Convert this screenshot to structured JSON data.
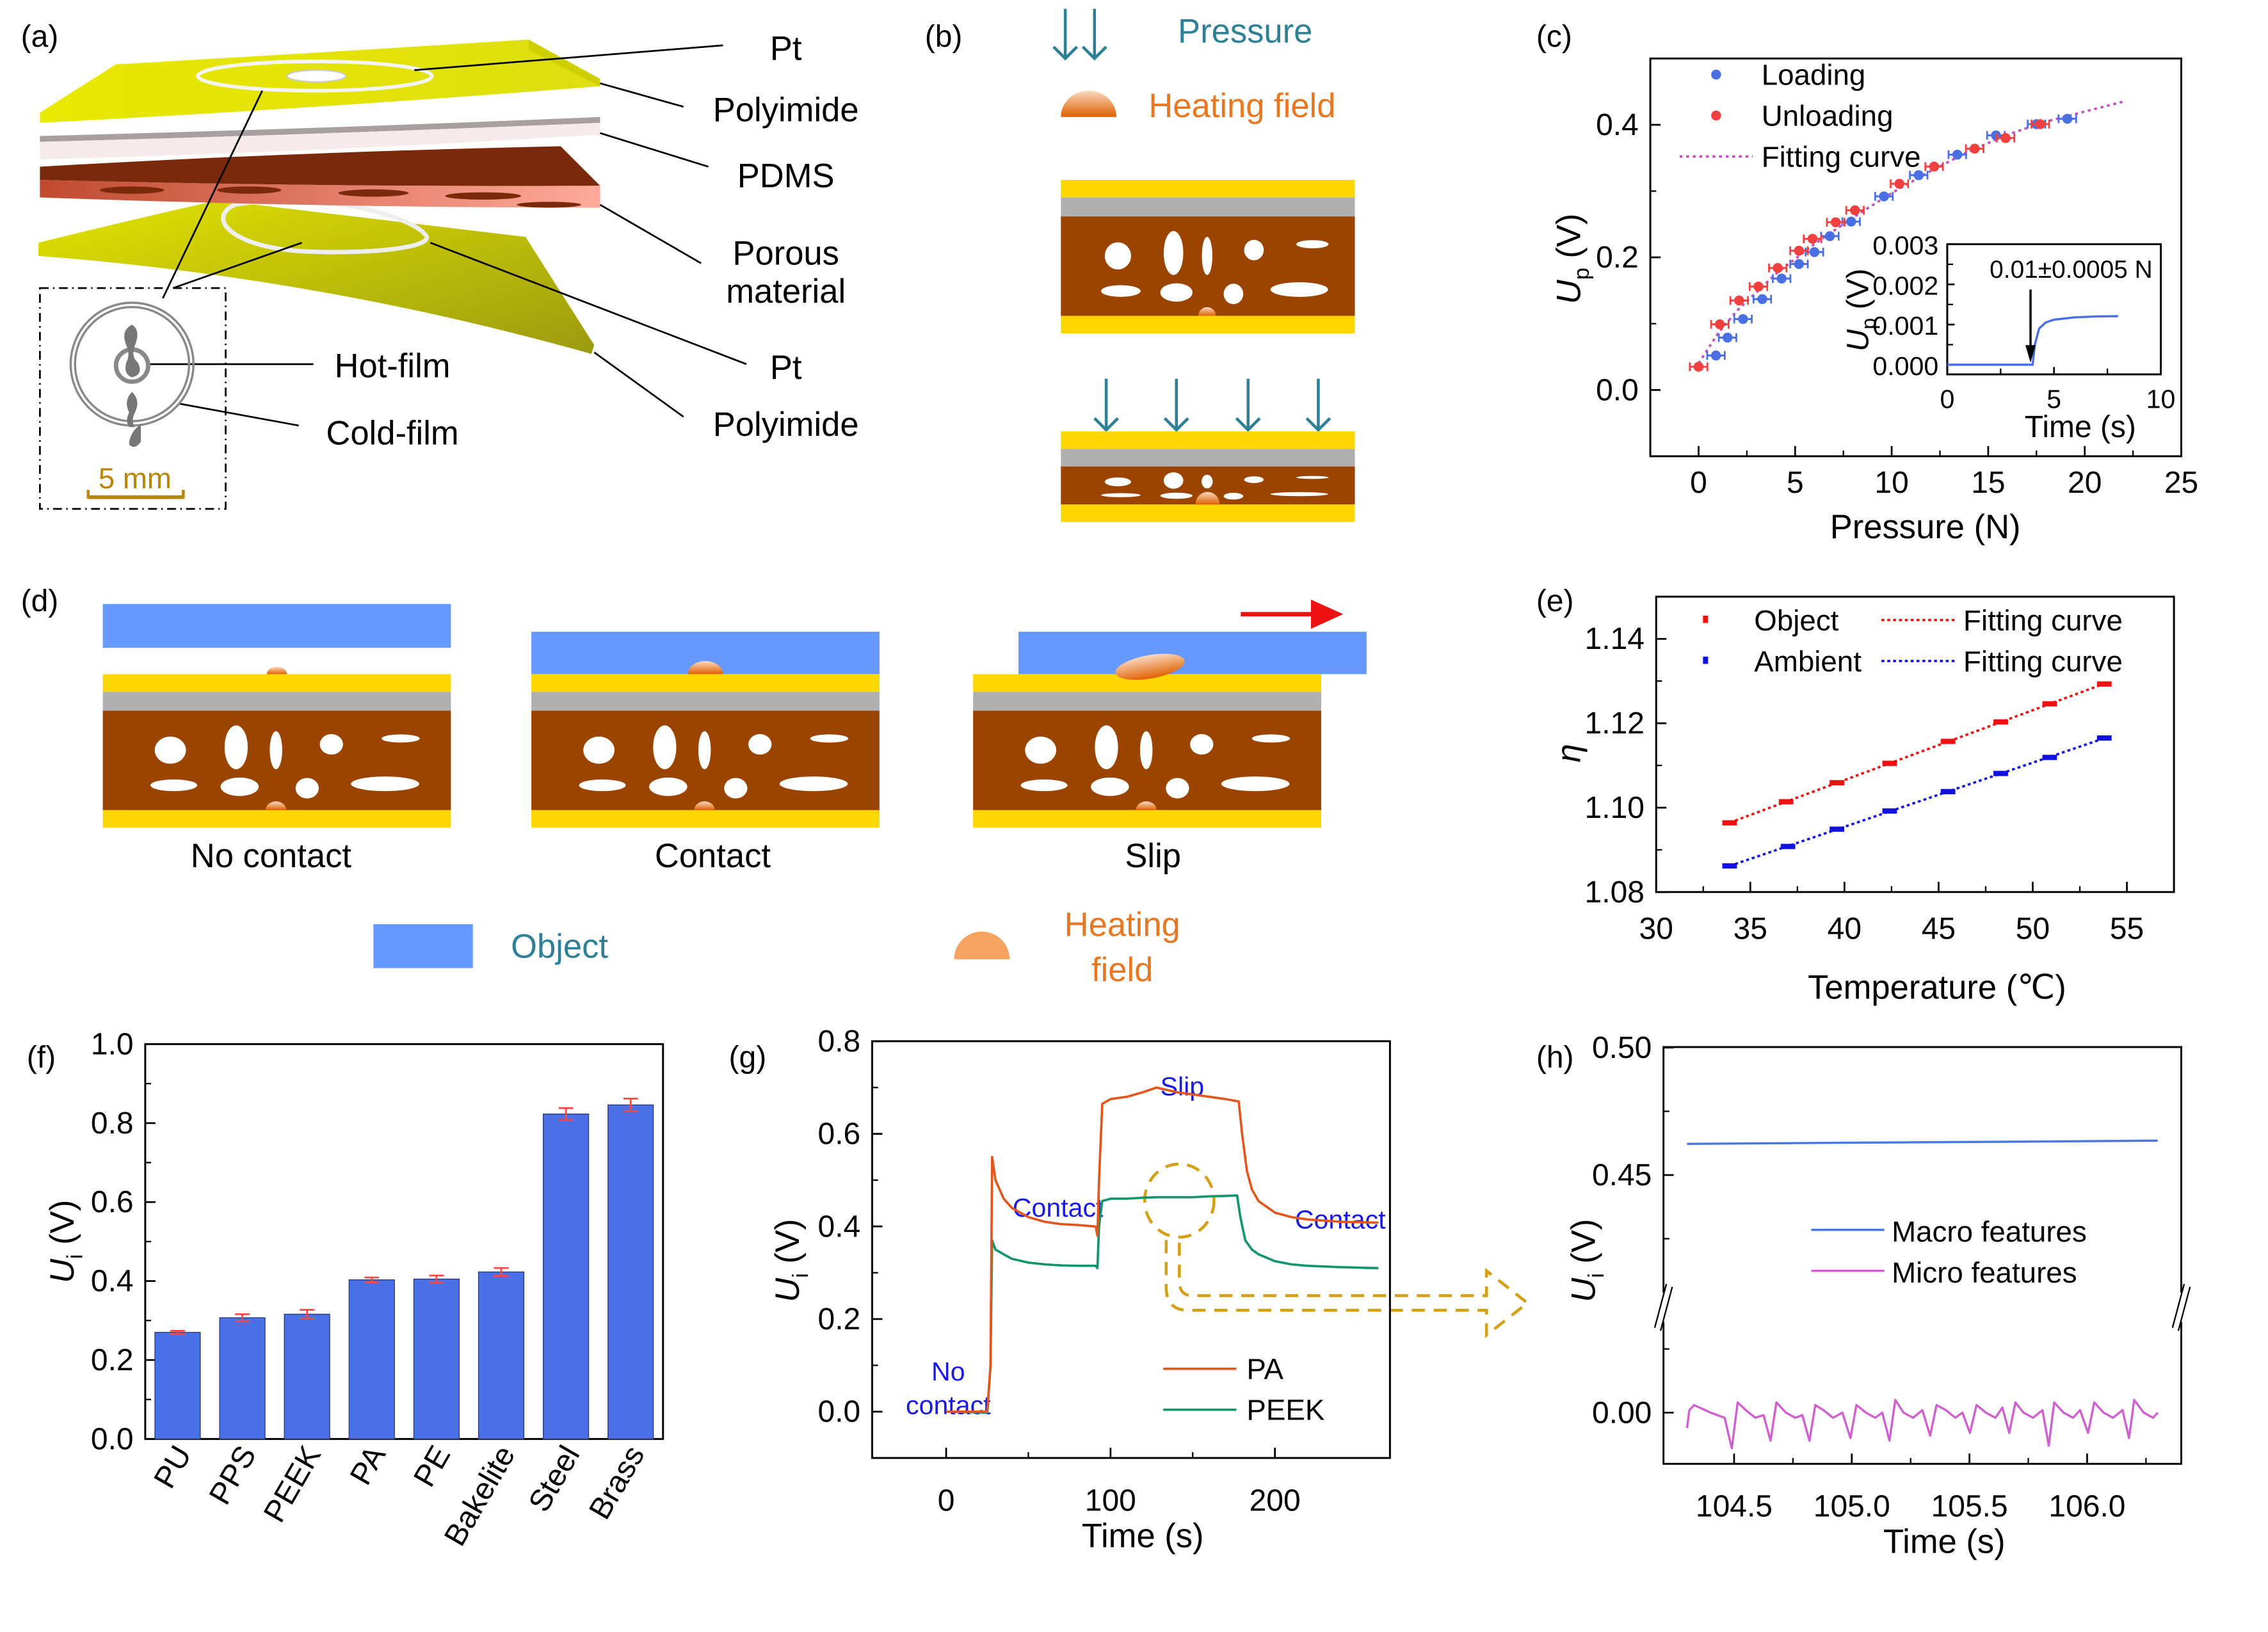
{
  "panel_labels": {
    "a": "(a)",
    "b": "(b)",
    "c": "(c)",
    "d": "(d)",
    "e": "(e)",
    "f": "(f)",
    "g": "(g)",
    "h": "(h)"
  },
  "panel_a": {
    "pt_top": "Pt",
    "polyimide_top": "Polyimide",
    "pdms": "PDMS",
    "porous_1": "Porous",
    "porous_2": "material",
    "pt_bottom": "Pt",
    "polyimide_bottom": "Polyimide",
    "hot_film": "Hot-film",
    "cold_film": "Cold-film",
    "scale_bar": "5 mm"
  },
  "panel_b": {
    "pressure": "Pressure",
    "heating_field": "Heating field"
  },
  "panel_d": {
    "states": [
      "No contact",
      "Contact",
      "Slip"
    ],
    "legend_object": "Object",
    "legend_heating_1": "Heating",
    "legend_heating_2": "field"
  },
  "colors": {
    "polyimide": "#ffd700",
    "pdms": "#b0b0b0",
    "porous": "#9a4400",
    "object": "#6699ff",
    "pressure": "#2e8096",
    "heating": "#e87722",
    "slip_arrow": "#ee1111",
    "annotation": "#1a1ae6",
    "zoom_marker": "#d4a017"
  },
  "chart_data": [
    {
      "panel": "(c)",
      "type": "scatter",
      "xlabel": "Pressure (N)",
      "ylabel": {
        "symbol": "U",
        "subscript": "p",
        "unit": " (V)"
      },
      "xlim": [
        -2.5,
        25
      ],
      "ylim": [
        -0.1,
        0.5
      ],
      "xticks": [
        0,
        5,
        10,
        15,
        20,
        25
      ],
      "xtick_labels": [
        "0",
        "5",
        "10",
        "15",
        "20",
        "25"
      ],
      "yticks": [
        0,
        0.2,
        0.4
      ],
      "ytick_labels": [
        "0.0",
        "0.2",
        "0.4"
      ],
      "legend": "top-left",
      "grid": false,
      "series": [
        {
          "name": "Loading",
          "color": "#4a6fe3",
          "marker": "circle",
          "error_bars": "x",
          "x": [
            0.9,
            1.5,
            2.3,
            3.3,
            4.3,
            5.2,
            6.0,
            6.8,
            7.9,
            9.6,
            11.4,
            13.4,
            15.4,
            17.5,
            19.1
          ],
          "y": [
            0.052,
            0.079,
            0.107,
            0.137,
            0.168,
            0.19,
            0.208,
            0.232,
            0.254,
            0.292,
            0.324,
            0.355,
            0.384,
            0.401,
            0.409
          ]
        },
        {
          "name": "Unloading",
          "color": "#f04040",
          "marker": "circle",
          "error_bars": "x",
          "x": [
            0,
            1.1,
            2.1,
            3.1,
            4.1,
            5.2,
            5.9,
            7.1,
            8.1,
            10.4,
            12.2,
            14.3,
            15.9,
            17.7
          ],
          "y": [
            0.035,
            0.099,
            0.135,
            0.156,
            0.184,
            0.21,
            0.228,
            0.253,
            0.271,
            0.311,
            0.337,
            0.364,
            0.38,
            0.401
          ]
        },
        {
          "name": "Fitting curve",
          "color": "#c050c0",
          "style": "dotted",
          "x": [
            0,
            1,
            2,
            4,
            6,
            8,
            10,
            12,
            14,
            16,
            18,
            20,
            22
          ],
          "y": [
            0.04,
            0.085,
            0.12,
            0.175,
            0.22,
            0.26,
            0.297,
            0.33,
            0.36,
            0.385,
            0.405,
            0.42,
            0.435
          ]
        }
      ],
      "inset": {
        "type": "line",
        "xlabel": "Time (s)",
        "ylabel": {
          "symbol": "U",
          "subscript": "p",
          "unit": " (V)"
        },
        "xlim": [
          0,
          10
        ],
        "ylim": [
          -0.00024,
          0.003
        ],
        "xticks": [
          0,
          5,
          10
        ],
        "xtick_labels": [
          "0",
          "5",
          "10"
        ],
        "yticks": [
          0,
          0.001,
          0.002,
          0.003
        ],
        "ytick_labels": [
          "0.000",
          "0.001",
          "0.002",
          "0.003"
        ],
        "annotation": "0.01±0.0005 N",
        "annotation_arrow_x": 3.9,
        "series": [
          {
            "color": "#4a6fe3",
            "x": [
              0,
              3.9,
              4.0,
              4.1,
              4.3,
              4.6,
              5,
              6,
              7,
              8
            ],
            "y": [
              0,
              0,
              0,
              0.0005,
              0.0009,
              0.00105,
              0.00112,
              0.00118,
              0.0012,
              0.00121
            ]
          }
        ]
      }
    },
    {
      "panel": "(e)",
      "type": "scatter",
      "xlabel": "Temperature (℃)",
      "ylabel": {
        "symbol": "η",
        "subscript": "",
        "unit": ""
      },
      "xlim": [
        30,
        57.5
      ],
      "ylim": [
        1.08,
        1.15
      ],
      "xticks": [
        30,
        35,
        40,
        45,
        50,
        55
      ],
      "xtick_labels": [
        "30",
        "35",
        "40",
        "45",
        "50",
        "55"
      ],
      "yticks": [
        1.08,
        1.1,
        1.12,
        1.14
      ],
      "ytick_labels": [
        "1.08",
        "1.10",
        "1.12",
        "1.14"
      ],
      "legend": "top",
      "grid": false,
      "series": [
        {
          "name": "Object",
          "color": "#ee1111",
          "marker": "square",
          "fit_name": "Fitting curve",
          "x": [
            33.9,
            36.9,
            39.6,
            42.4,
            45.5,
            48.3,
            50.9,
            53.8
          ],
          "y": [
            1.0964,
            1.1014,
            1.1059,
            1.1105,
            1.1157,
            1.1203,
            1.1246,
            1.1293
          ]
        },
        {
          "name": "Ambient",
          "color": "#1111dd",
          "marker": "square",
          "fit_name": "Fitting curve",
          "x": [
            33.9,
            37.0,
            39.6,
            42.4,
            45.5,
            48.3,
            50.9,
            53.8
          ],
          "y": [
            1.0862,
            1.0908,
            1.0949,
            1.0992,
            1.1038,
            1.1081,
            1.1119,
            1.1165
          ]
        }
      ]
    },
    {
      "panel": "(f)",
      "type": "bar",
      "ylabel": {
        "symbol": "U",
        "subscript": "i",
        "unit": " (V)"
      },
      "ylim": [
        0,
        1.0
      ],
      "yticks": [
        0,
        0.2,
        0.4,
        0.6,
        0.8,
        1.0
      ],
      "ytick_labels": [
        "0.0",
        "0.2",
        "0.4",
        "0.6",
        "0.8",
        "1.0"
      ],
      "categories": [
        "PU",
        "PPS",
        "PEEK",
        "PA",
        "PE",
        "Bakelite",
        "Steel",
        "Brass"
      ],
      "values": [
        0.27,
        0.307,
        0.316,
        0.403,
        0.405,
        0.423,
        0.823,
        0.846
      ],
      "errors": [
        0.004,
        0.009,
        0.011,
        0.006,
        0.009,
        0.01,
        0.015,
        0.016
      ],
      "bar_color": "#4a70e8",
      "error_color": "#ff4444"
    },
    {
      "panel": "(g)",
      "type": "line",
      "xlabel": "Time (s)",
      "ylabel": {
        "symbol": "U",
        "subscript": "i",
        "unit": " (V)"
      },
      "xlim": [
        -45,
        270
      ],
      "ylim": [
        -0.1,
        0.8
      ],
      "xticks": [
        0,
        100,
        200
      ],
      "xtick_labels": [
        "0",
        "100",
        "200"
      ],
      "yticks": [
        0,
        0.2,
        0.4,
        0.6,
        0.8
      ],
      "ytick_labels": [
        "0.0",
        "0.2",
        "0.4",
        "0.6",
        "0.8"
      ],
      "legend": "bottom-right",
      "annotations": {
        "no_contact_1": "No",
        "no_contact_2": "contact",
        "contact_1": "Contact",
        "slip": "Slip",
        "contact_2": "Contact"
      },
      "series": [
        {
          "name": "PA",
          "color": "#e2561d",
          "x": [
            0,
            25,
            27,
            28,
            30,
            35,
            40,
            50,
            60,
            70,
            80,
            91,
            92,
            93,
            95,
            100,
            110,
            120,
            128,
            140,
            150,
            160,
            170,
            178,
            180,
            183,
            186,
            190,
            200,
            210,
            220,
            240,
            263
          ],
          "y": [
            0,
            0,
            0.1,
            0.55,
            0.5,
            0.46,
            0.44,
            0.42,
            0.41,
            0.405,
            0.403,
            0.4,
            0.38,
            0.5,
            0.665,
            0.675,
            0.68,
            0.69,
            0.7,
            0.69,
            0.685,
            0.68,
            0.675,
            0.67,
            0.6,
            0.52,
            0.48,
            0.455,
            0.43,
            0.42,
            0.415,
            0.41,
            0.408
          ]
        },
        {
          "name": "PEEK",
          "color": "#13946b",
          "x": [
            0,
            25,
            27,
            28,
            30,
            35,
            40,
            50,
            60,
            70,
            80,
            91,
            92,
            93,
            95,
            100,
            110,
            120,
            128,
            140,
            150,
            160,
            170,
            177,
            179,
            182,
            186,
            190,
            200,
            210,
            220,
            240,
            263
          ],
          "y": [
            0,
            -0.002,
            0.1,
            0.37,
            0.35,
            0.34,
            0.33,
            0.322,
            0.318,
            0.316,
            0.315,
            0.315,
            0.31,
            0.4,
            0.455,
            0.46,
            0.46,
            0.462,
            0.463,
            0.463,
            0.463,
            0.465,
            0.466,
            0.467,
            0.42,
            0.37,
            0.35,
            0.34,
            0.325,
            0.318,
            0.315,
            0.312,
            0.31
          ]
        }
      ]
    },
    {
      "panel": "(h)",
      "type": "line",
      "xlabel": "Time (s)",
      "ylabel": {
        "symbol": "U",
        "subscript": "i",
        "unit": " (V)"
      },
      "xlim": [
        104.2,
        106.4
      ],
      "ylim": [
        -0.02,
        0.5
      ],
      "y_axis_break": [
        0.04,
        0.4
      ],
      "xticks": [
        104.5,
        105.0,
        105.5,
        106.0
      ],
      "xtick_labels": [
        "104.5",
        "105.0",
        "105.5",
        "106.0"
      ],
      "yticks": [
        0,
        0.45,
        0.5
      ],
      "ytick_labels": [
        "0.00",
        "0.45",
        "0.50"
      ],
      "legend": "center",
      "series": [
        {
          "name": "Macro features",
          "color": "#4a78e0",
          "x": [
            104.3,
            105.0,
            105.7,
            106.3
          ],
          "y": [
            0.4622,
            0.4627,
            0.4631,
            0.4635
          ]
        },
        {
          "name": "Micro features",
          "color": "#d060d0",
          "x": [
            104.3,
            104.31,
            104.33,
            104.4,
            104.46,
            104.49,
            104.515,
            104.55,
            104.59,
            104.625,
            104.655,
            104.68,
            104.72,
            104.76,
            104.79,
            104.82,
            104.845,
            104.88,
            104.92,
            104.96,
            104.994,
            105.02,
            105.06,
            105.1,
            105.13,
            105.16,
            105.185,
            105.22,
            105.26,
            105.3,
            105.333,
            105.36,
            105.4,
            105.44,
            105.47,
            105.502,
            105.53,
            105.57,
            105.61,
            105.64,
            105.669,
            105.695,
            105.73,
            105.77,
            105.81,
            105.837,
            105.86,
            105.9,
            105.94,
            105.97,
            106.004,
            106.03,
            106.07,
            106.11,
            106.15,
            106.178,
            106.2,
            106.24,
            106.28,
            106.3
          ],
          "y": [
            -0.006,
            0.001,
            0.003,
            0.0,
            -0.002,
            -0.014,
            0.004,
            0.001,
            -0.002,
            -0.001,
            -0.011,
            0.004,
            0.0,
            -0.002,
            -0.001,
            -0.011,
            0.003,
            0.001,
            -0.002,
            0.0,
            -0.01,
            0.003,
            0.0,
            -0.002,
            0.0,
            -0.011,
            0.005,
            0.0,
            -0.002,
            0.001,
            -0.009,
            0.003,
            0.001,
            -0.002,
            0.0,
            -0.008,
            0.003,
            0.0,
            -0.002,
            0.002,
            -0.008,
            0.004,
            0.0,
            -0.002,
            0.001,
            -0.013,
            0.004,
            0.0,
            -0.002,
            0.001,
            -0.008,
            0.004,
            0.0,
            -0.002,
            0.001,
            -0.01,
            0.005,
            0.0,
            -0.002,
            0.0
          ]
        }
      ]
    }
  ]
}
